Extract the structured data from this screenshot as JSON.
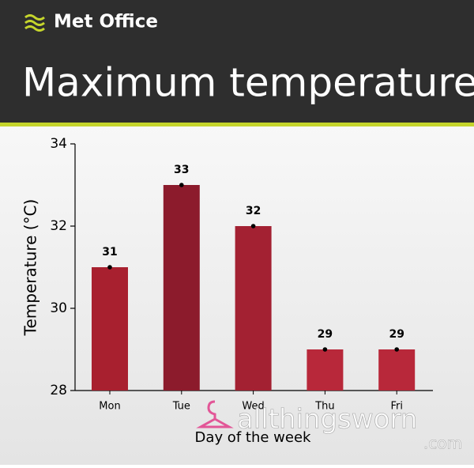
{
  "header": {
    "logo": "Met Office",
    "title": "Maximum temperature"
  },
  "chart_data": {
    "type": "bar",
    "x_label": "Day of the week",
    "y_label": "Temperature (°C)",
    "categories": [
      "Mon",
      "Tue",
      "Wed",
      "Thu",
      "Fri"
    ],
    "values": [
      31,
      33,
      32,
      29,
      29
    ],
    "colors": [
      "#a8202f",
      "#8c1b2c",
      "#a32132",
      "#b8283a",
      "#b8283a"
    ],
    "ylim": [
      28,
      34
    ],
    "yticks": [
      28,
      30,
      32,
      34
    ],
    "grid": false
  },
  "watermark": {
    "text": "allthingsworn",
    "suffix": ".com"
  }
}
